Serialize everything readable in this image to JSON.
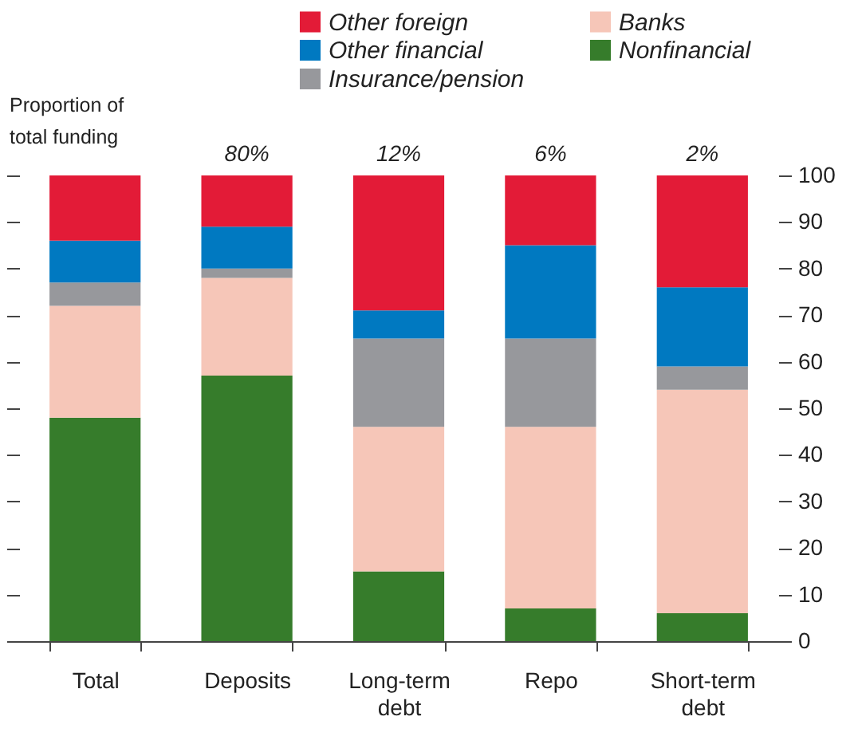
{
  "chart_data": {
    "type": "bar",
    "stacked": true,
    "categories": [
      "Total",
      "Deposits",
      "Long-term debt",
      "Repo",
      "Short-term debt"
    ],
    "series": [
      {
        "name": "Nonfinancial",
        "color": "#367c2b",
        "values": [
          48,
          57,
          15,
          7,
          6
        ]
      },
      {
        "name": "Banks",
        "color": "#f6c6b8",
        "values": [
          24,
          21,
          31,
          39,
          48
        ]
      },
      {
        "name": "Insurance/pension",
        "color": "#97989c",
        "values": [
          5,
          2,
          19,
          19,
          5
        ]
      },
      {
        "name": "Other financial",
        "color": "#0079c1",
        "values": [
          9,
          9,
          6,
          20,
          17
        ]
      },
      {
        "name": "Other foreign",
        "color": "#e31b37",
        "values": [
          14,
          11,
          29,
          15,
          24
        ]
      }
    ],
    "ylim": [
      0,
      100
    ],
    "yticks": [
      0,
      10,
      20,
      30,
      40,
      50,
      60,
      70,
      80,
      90,
      100
    ],
    "legend": "top",
    "grid": false,
    "annotations": [
      "Proportion of total funding",
      "80%",
      "12%",
      "6%",
      "2%"
    ]
  }
}
